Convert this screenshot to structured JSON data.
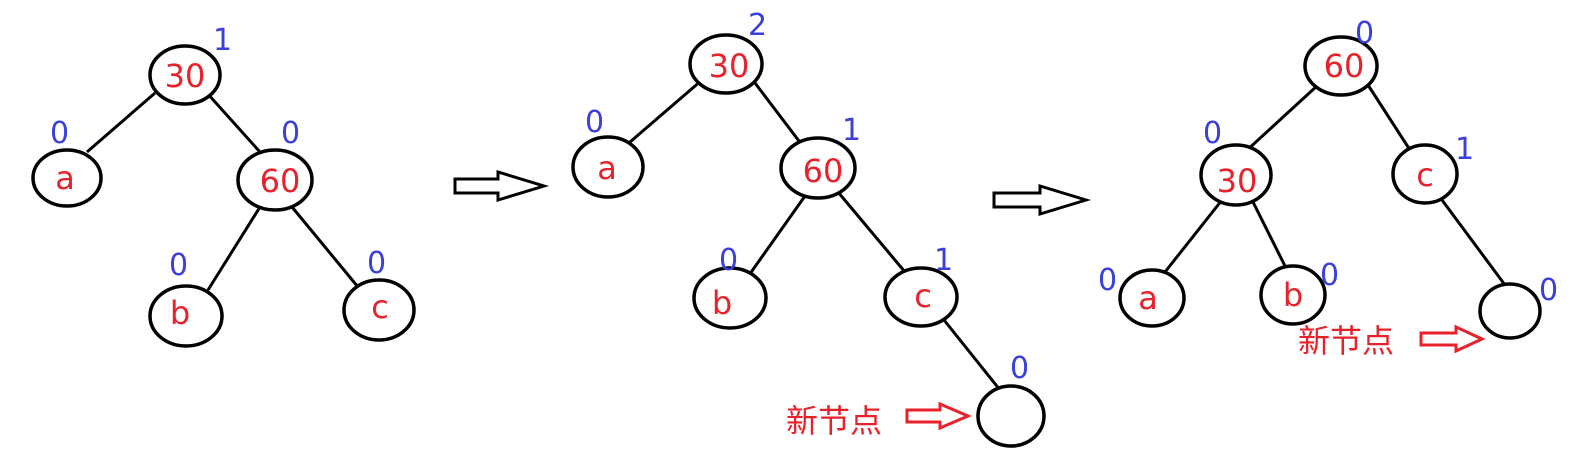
{
  "colors": {
    "node_label": "#e8222b",
    "balance_factor": "#3a40d8",
    "annotation": "#e8222b",
    "edges": "#000000"
  },
  "trees": [
    {
      "nodes": [
        {
          "id": "n30",
          "label": "30",
          "bf": "1"
        },
        {
          "id": "na",
          "label": "a",
          "bf": "0"
        },
        {
          "id": "n60",
          "label": "60",
          "bf": "0"
        },
        {
          "id": "nb",
          "label": "b",
          "bf": "0"
        },
        {
          "id": "nc",
          "label": "c",
          "bf": "0"
        }
      ]
    },
    {
      "nodes": [
        {
          "id": "n30",
          "label": "30",
          "bf": "2"
        },
        {
          "id": "na",
          "label": "a",
          "bf": "0"
        },
        {
          "id": "n60",
          "label": "60",
          "bf": "1"
        },
        {
          "id": "nb",
          "label": "b",
          "bf": "0"
        },
        {
          "id": "nc",
          "label": "c",
          "bf": "1"
        },
        {
          "id": "nnew",
          "label": "",
          "bf": "0"
        }
      ],
      "new_node_label": "新节点"
    },
    {
      "nodes": [
        {
          "id": "n60",
          "label": "60",
          "bf": "0"
        },
        {
          "id": "n30",
          "label": "30",
          "bf": "0"
        },
        {
          "id": "nc",
          "label": "c",
          "bf": "1"
        },
        {
          "id": "na",
          "label": "a",
          "bf": "0"
        },
        {
          "id": "nb",
          "label": "b",
          "bf": "0"
        },
        {
          "id": "nnew",
          "label": "",
          "bf": "0"
        }
      ],
      "new_node_label": "新节点"
    }
  ]
}
